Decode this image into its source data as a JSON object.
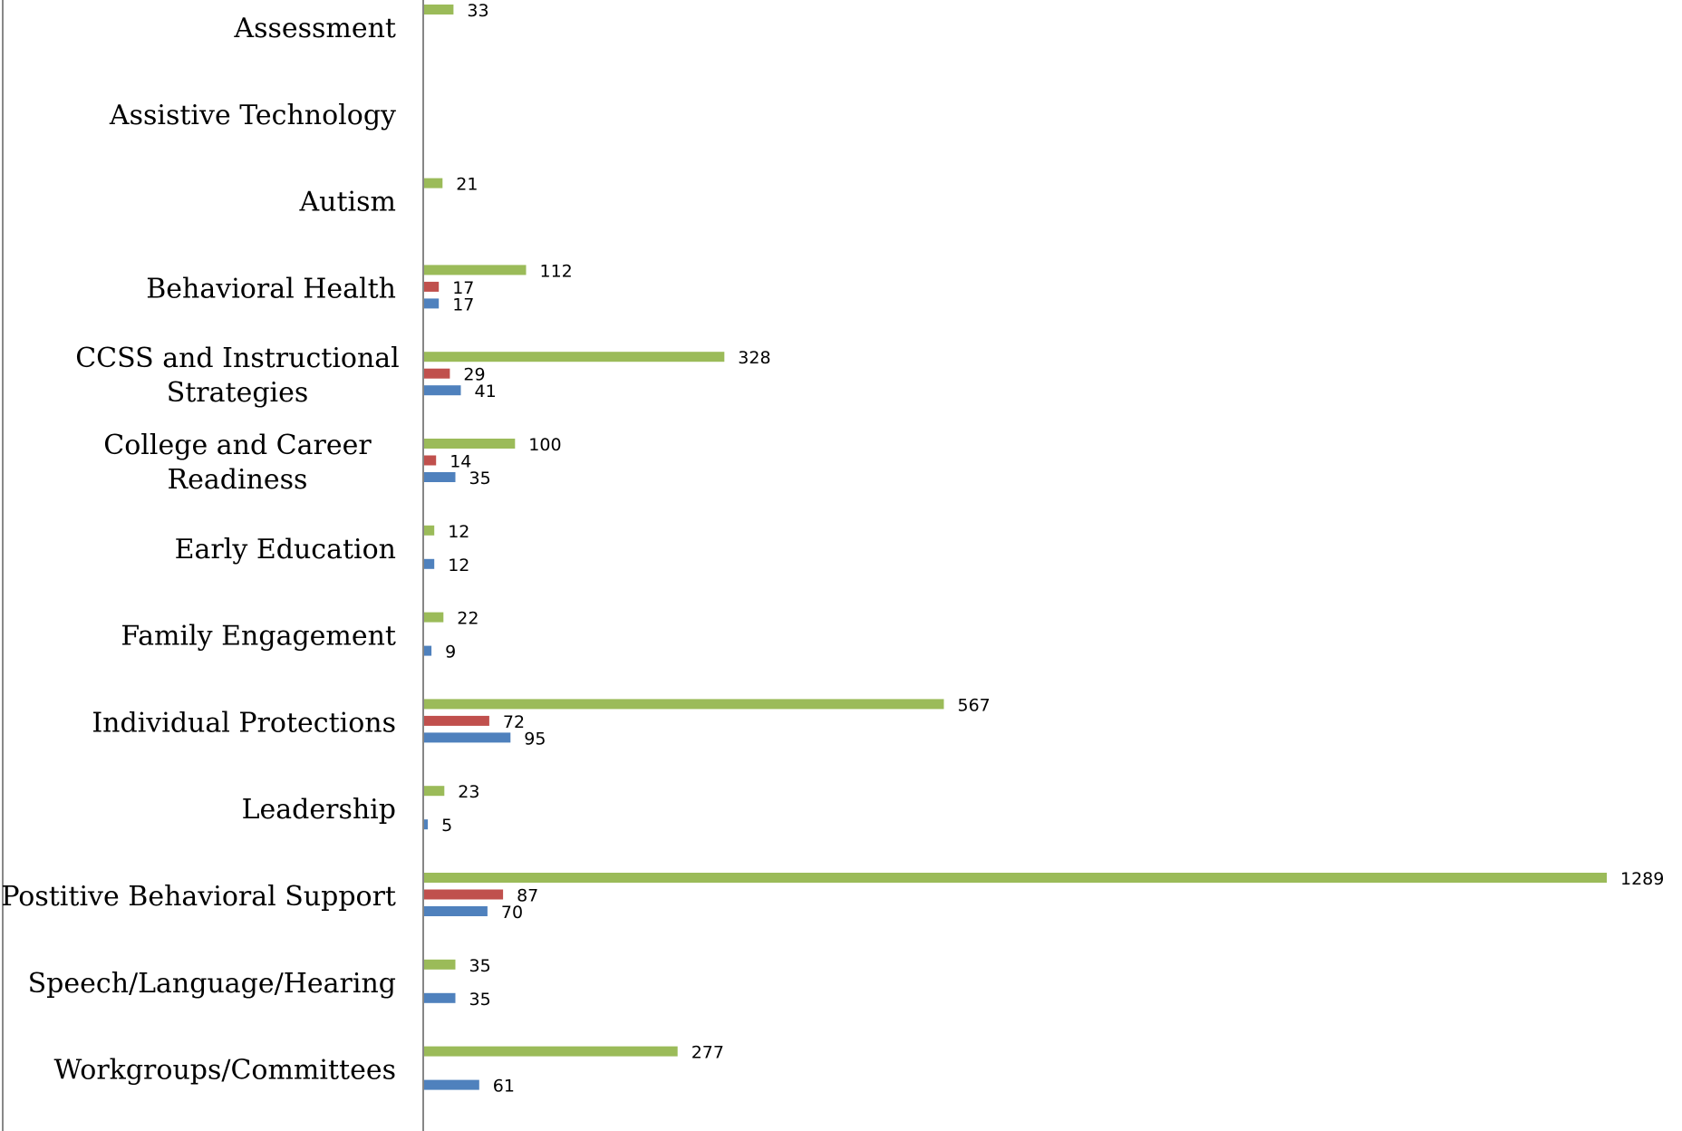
{
  "chart_data": {
    "type": "bar",
    "orientation": "horizontal",
    "categories": [
      [
        "Assessment"
      ],
      [
        "Assistive Technology"
      ],
      [
        "Autism"
      ],
      [
        "Behavioral Health"
      ],
      [
        "CCSS and Instructional",
        "Strategies"
      ],
      [
        "College and Career",
        "Readiness"
      ],
      [
        "Early Education"
      ],
      [
        "Family Engagement"
      ],
      [
        "Individual Protections"
      ],
      [
        "Leadership"
      ],
      [
        "Postitive Behavioral Support"
      ],
      [
        "Speech/Language/Hearing"
      ],
      [
        "Workgroups/Committees"
      ]
    ],
    "series": [
      {
        "color": "#9BBB59",
        "values": [
          33,
          null,
          21,
          112,
          328,
          100,
          12,
          22,
          567,
          23,
          1289,
          35,
          277
        ]
      },
      {
        "color": "#C0504D",
        "values": [
          null,
          null,
          null,
          17,
          29,
          14,
          null,
          null,
          72,
          null,
          87,
          null,
          null
        ]
      },
      {
        "color": "#4F81BD",
        "values": [
          null,
          null,
          null,
          17,
          41,
          35,
          12,
          9,
          95,
          5,
          70,
          35,
          61
        ]
      }
    ],
    "xlim": [
      0,
      1300
    ],
    "grid": false,
    "legend": "none",
    "data_labels": true
  }
}
